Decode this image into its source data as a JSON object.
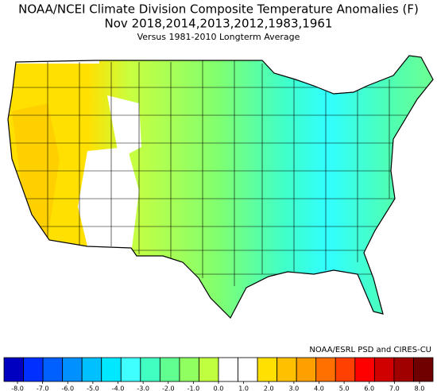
{
  "header": {
    "title": "NOAA/NCEI Climate Division Composite Temperature Anomalies (F)",
    "subtitle": "Nov  2018,2014,2013,2012,1983,1961",
    "note": "Versus 1981-2010 Longterm Average"
  },
  "credit": "NOAA/ESRL PSD and CIRES-CU",
  "colorbar": {
    "colors": [
      "#0000c0",
      "#0030ff",
      "#0060ff",
      "#0090ff",
      "#00c0ff",
      "#00e8ff",
      "#40ffff",
      "#40ffc0",
      "#60ff90",
      "#90ff60",
      "#c0ff40",
      "#ffffff",
      "#ffffff",
      "#ffe000",
      "#ffc000",
      "#ffa000",
      "#ff7000",
      "#ff4000",
      "#ff0000",
      "#d00000",
      "#a00000",
      "#700000"
    ],
    "ticks": [
      {
        "value": -8,
        "label": "-8.0"
      },
      {
        "value": -7,
        "label": "-7.0"
      },
      {
        "value": -6,
        "label": "-6.0"
      },
      {
        "value": -5,
        "label": "-5.0"
      },
      {
        "value": -4,
        "label": "-4.0"
      },
      {
        "value": -3,
        "label": "-3.0"
      },
      {
        "value": -2,
        "label": "-2.0"
      },
      {
        "value": -1,
        "label": "-1.0"
      },
      {
        "value": 0,
        "label": "0.0"
      },
      {
        "value": 1,
        "label": "1.0"
      },
      {
        "value": 2,
        "label": "2.0"
      },
      {
        "value": 3,
        "label": "3.0"
      },
      {
        "value": 4,
        "label": "4.0"
      },
      {
        "value": 5,
        "label": "5.0"
      },
      {
        "value": 6,
        "label": "6.0"
      },
      {
        "value": 7,
        "label": "7.0"
      },
      {
        "value": 8,
        "label": "8.0"
      }
    ]
  }
}
